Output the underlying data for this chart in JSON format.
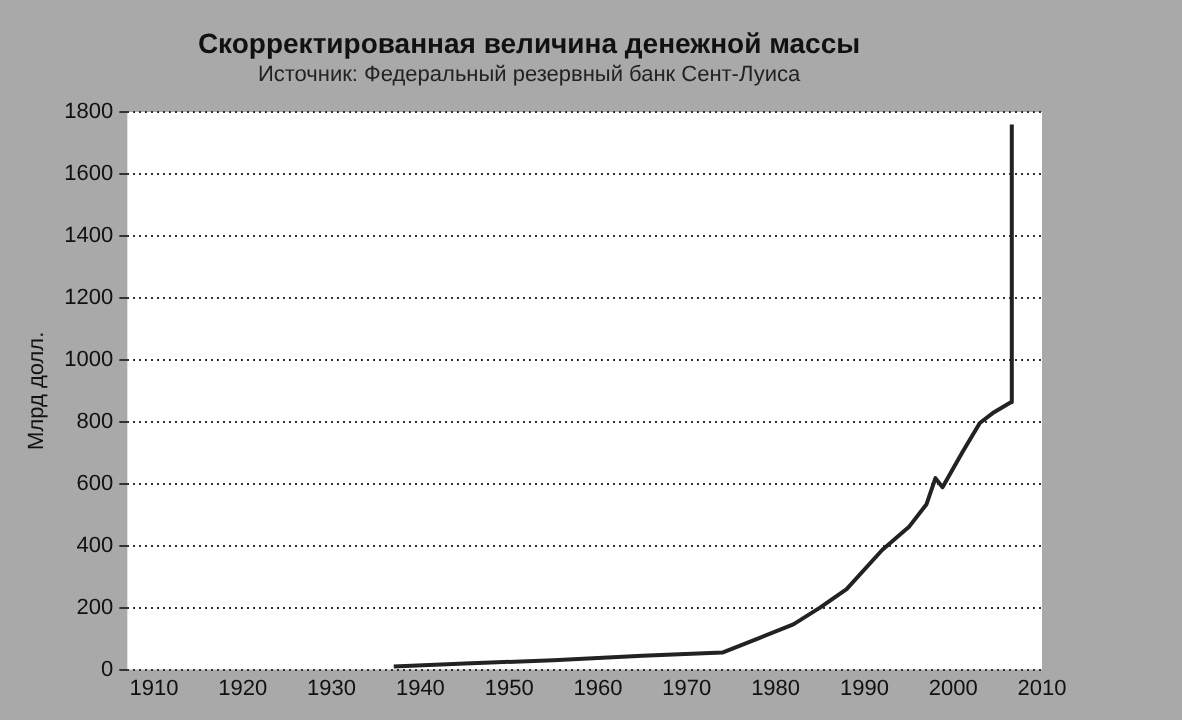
{
  "chart_data": {
    "type": "line",
    "title": "Скорректированная величина денежной массы",
    "subtitle": "Источник: Федеральный резервный банк Сент-Луиса",
    "ylabel": "Млрд долл.",
    "x": [
      1937,
      1945,
      1955,
      1965,
      1974,
      1978,
      1982,
      1985,
      1988,
      1992,
      1995,
      1997,
      1998,
      1998.8,
      2001,
      2003,
      2004.6,
      2006.5,
      2006.6
    ],
    "series": [
      {
        "color": "#222222",
        "values": [
          10,
          20,
          30,
          45,
          55,
          100,
          146,
          200,
          260,
          386,
          460,
          534,
          618,
          589,
          700,
          796,
          831,
          863,
          1760
        ]
      }
    ],
    "xlim": [
      1907,
      2010
    ],
    "xticks": [
      1910,
      1920,
      1930,
      1940,
      1950,
      1960,
      1970,
      1980,
      1990,
      2000,
      2010
    ],
    "ylim": [
      0,
      1800
    ],
    "yticks": [
      0,
      200,
      400,
      600,
      800,
      1000,
      1200,
      1400,
      1600,
      1800
    ],
    "grid": "y",
    "legend": false,
    "marker": "none",
    "line_style": "solid"
  }
}
